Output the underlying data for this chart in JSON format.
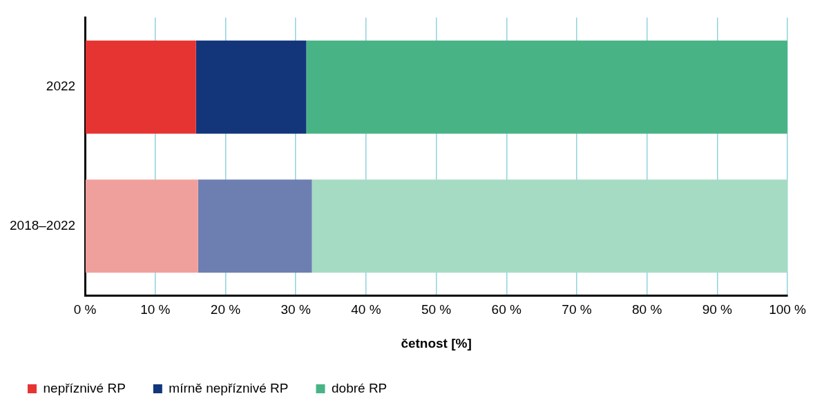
{
  "chart_data": {
    "type": "bar",
    "orientation": "horizontal",
    "stacked": true,
    "xlabel": "četnost [%]",
    "categories": [
      "2022",
      "2018–2022"
    ],
    "series": [
      {
        "name": "nepříznivé RP",
        "color": "#e63432",
        "colors": [
          "#e63432",
          "#f0a09c"
        ],
        "values": [
          15.8,
          16.1
        ]
      },
      {
        "name": "mírně nepříznivé RP",
        "color": "#13367b",
        "colors": [
          "#13367b",
          "#6d7fb0"
        ],
        "values": [
          15.7,
          16.2
        ]
      },
      {
        "name": "dobré RP",
        "color": "#48b486",
        "colors": [
          "#48b486",
          "#a6dbc3"
        ],
        "values": [
          68.5,
          67.7
        ]
      }
    ],
    "xlim": [
      0,
      100
    ],
    "xticks": [
      {
        "value": 0,
        "label": "0 %"
      },
      {
        "value": 10,
        "label": "10 %"
      },
      {
        "value": 20,
        "label": "20 %"
      },
      {
        "value": 30,
        "label": "30 %"
      },
      {
        "value": 40,
        "label": "40 %"
      },
      {
        "value": 50,
        "label": "50 %"
      },
      {
        "value": 60,
        "label": "60 %"
      },
      {
        "value": 70,
        "label": "70 %"
      },
      {
        "value": 80,
        "label": "80 %"
      },
      {
        "value": 90,
        "label": "90 %"
      },
      {
        "value": 100,
        "label": "100 %"
      }
    ],
    "grid": "x",
    "legend": "bottom left"
  }
}
